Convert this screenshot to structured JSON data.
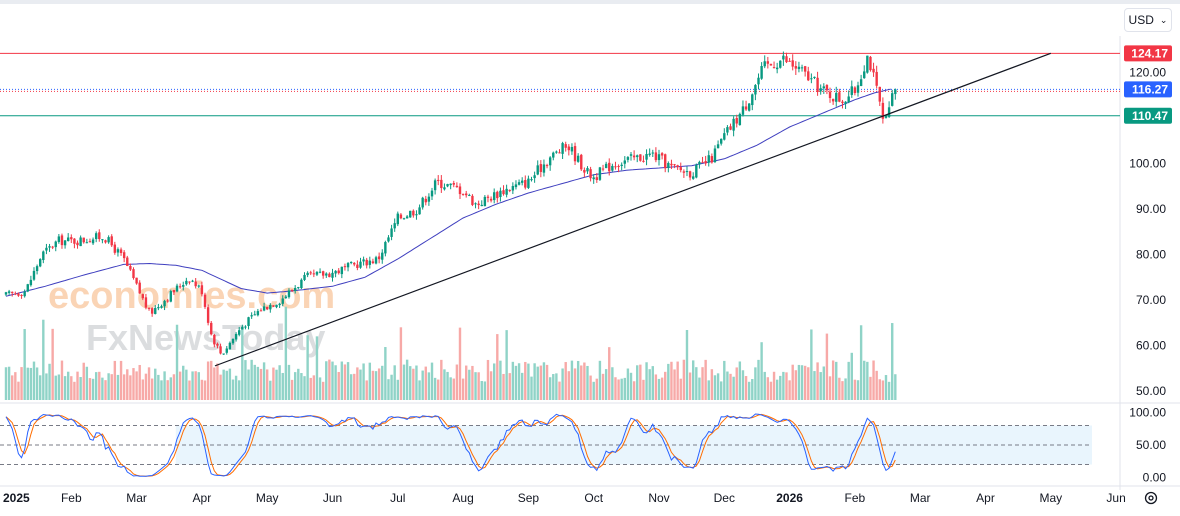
{
  "currency_selector": {
    "label": "USD",
    "chevron": "chevron-down-icon"
  },
  "watermark": {
    "line1": "economies.com",
    "line2": "FxNewsToday"
  },
  "chart_data": {
    "type": "candlestick",
    "title": "",
    "price_axis": {
      "ticks": [
        "120.00",
        "100.00",
        "90.00",
        "80.00",
        "70.00",
        "60.00",
        "50.00"
      ],
      "tick_values": [
        120,
        100,
        90,
        80,
        70,
        60,
        50
      ],
      "range": [
        48,
        128
      ]
    },
    "oscillator_axis": {
      "ticks": [
        "100.00",
        "50.00",
        "0.00"
      ],
      "tick_values": [
        100,
        50,
        0
      ],
      "range": [
        -10,
        110
      ],
      "band_upper": 80,
      "band_mid": 50,
      "band_lower": 20
    },
    "time_axis": {
      "labels": [
        "2025",
        "Feb",
        "Mar",
        "Apr",
        "May",
        "Jun",
        "Jul",
        "Aug",
        "Sep",
        "Oct",
        "Nov",
        "Dec",
        "2026",
        "Feb",
        "Mar",
        "Apr",
        "May",
        "Jun"
      ],
      "bold": [
        0,
        12
      ],
      "month_index": [
        0,
        1,
        2,
        3,
        4,
        5,
        6,
        7,
        8,
        9,
        10,
        11,
        12,
        13,
        14,
        15,
        16,
        17
      ]
    },
    "horizontal_levels": [
      {
        "name": "resistance",
        "value": 124.17,
        "label": "124.17",
        "color": "#f23645"
      },
      {
        "name": "last-price",
        "value": 116.27,
        "label": "116.27",
        "color": "#2962ff"
      },
      {
        "name": "support",
        "value": 110.47,
        "label": "110.47",
        "color": "#089981"
      }
    ],
    "trendline": {
      "start": {
        "month": 3.2,
        "value": 55.5
      },
      "end": {
        "month": 16.0,
        "value": 124.2
      }
    },
    "colors": {
      "up": "#089981",
      "down": "#f23645",
      "ma": "#3f3fbf",
      "stoch_k": "#2962ff",
      "stoch_d": "#ff6d00",
      "band": "#e3f2fd"
    },
    "price_anchors": [
      [
        0,
        71
      ],
      [
        0.3,
        72
      ],
      [
        0.55,
        80
      ],
      [
        0.8,
        83
      ],
      [
        1.1,
        83
      ],
      [
        1.5,
        84
      ],
      [
        1.8,
        79
      ],
      [
        2.0,
        73
      ],
      [
        2.2,
        67
      ],
      [
        2.5,
        71
      ],
      [
        2.8,
        75
      ],
      [
        3.0,
        72
      ],
      [
        3.15,
        62
      ],
      [
        3.3,
        58
      ],
      [
        3.6,
        64
      ],
      [
        3.9,
        68
      ],
      [
        4.2,
        70
      ],
      [
        4.6,
        75
      ],
      [
        5.0,
        76
      ],
      [
        5.4,
        78
      ],
      [
        5.7,
        79
      ],
      [
        6.0,
        88
      ],
      [
        6.3,
        90
      ],
      [
        6.6,
        96
      ],
      [
        7.0,
        94
      ],
      [
        7.2,
        91
      ],
      [
        7.6,
        94
      ],
      [
        8.0,
        96
      ],
      [
        8.3,
        101
      ],
      [
        8.6,
        104
      ],
      [
        8.9,
        98
      ],
      [
        9.0,
        97
      ],
      [
        9.3,
        100
      ],
      [
        9.6,
        101
      ],
      [
        9.9,
        102
      ],
      [
        10.2,
        99
      ],
      [
        10.5,
        98
      ],
      [
        10.8,
        101
      ],
      [
        11.0,
        106
      ],
      [
        11.3,
        112
      ],
      [
        11.6,
        121
      ],
      [
        11.9,
        123
      ],
      [
        12.2,
        120
      ],
      [
        12.5,
        116
      ],
      [
        12.8,
        114
      ],
      [
        13.0,
        116
      ],
      [
        13.2,
        124
      ],
      [
        13.35,
        115
      ],
      [
        13.45,
        108
      ],
      [
        13.55,
        113
      ],
      [
        13.6,
        116.27
      ]
    ],
    "ma_anchors": [
      [
        0,
        70.8
      ],
      [
        0.6,
        73
      ],
      [
        1.2,
        75.5
      ],
      [
        1.8,
        77.8
      ],
      [
        2.2,
        78
      ],
      [
        2.6,
        77.6
      ],
      [
        3.0,
        76.5
      ],
      [
        3.3,
        74.5
      ],
      [
        3.6,
        72.5
      ],
      [
        4.0,
        71.5
      ],
      [
        4.4,
        72
      ],
      [
        5.0,
        73
      ],
      [
        5.5,
        75
      ],
      [
        6.0,
        79
      ],
      [
        6.5,
        83.5
      ],
      [
        7.0,
        88
      ],
      [
        7.5,
        91
      ],
      [
        8.0,
        93.5
      ],
      [
        8.5,
        95.5
      ],
      [
        9.0,
        97.5
      ],
      [
        9.5,
        98.5
      ],
      [
        10.0,
        99
      ],
      [
        10.5,
        99.5
      ],
      [
        11.0,
        101
      ],
      [
        11.5,
        104
      ],
      [
        12.0,
        108
      ],
      [
        12.5,
        111
      ],
      [
        13.0,
        114
      ],
      [
        13.3,
        115.5
      ],
      [
        13.6,
        116.5
      ]
    ],
    "volume": {
      "max_scale": 100,
      "end_month": 13.6
    },
    "oscillator": {
      "type": "stochastic",
      "k_period": 14,
      "d_period": 3,
      "end_month": 13.6
    }
  }
}
